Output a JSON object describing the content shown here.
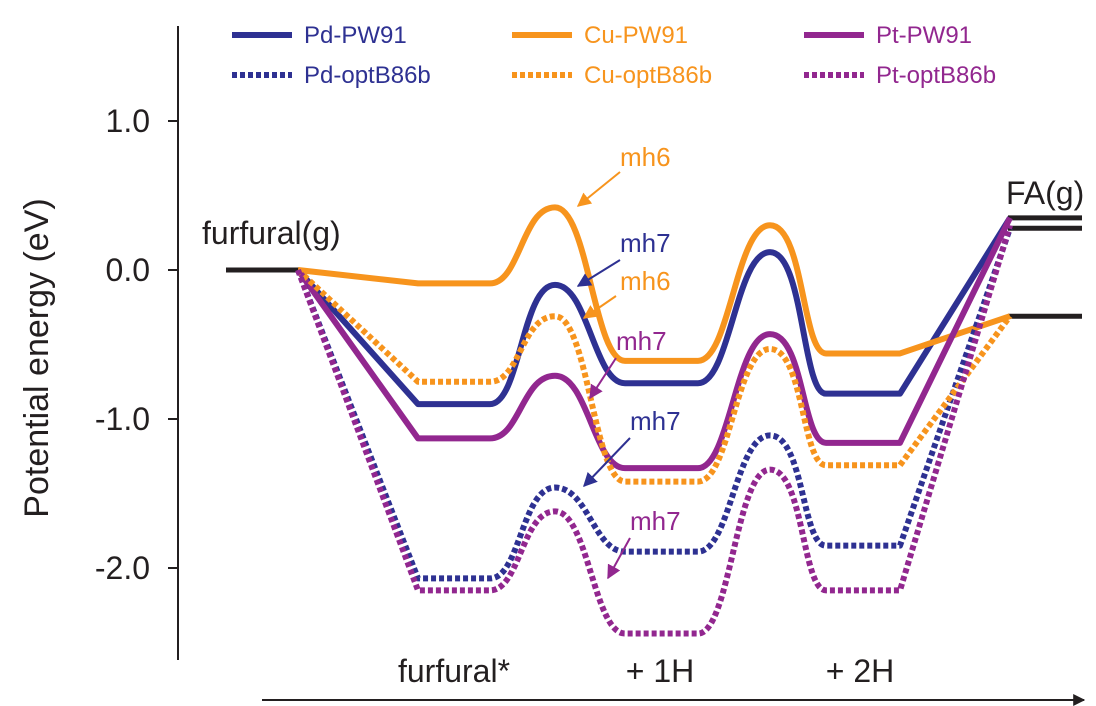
{
  "chart_data": {
    "type": "line",
    "title": "",
    "ylabel": "Potential energy (eV)",
    "xlabel": "",
    "ylim": [
      -2.6,
      1.6
    ],
    "yticks": [
      {
        "value": 1.0,
        "label": "1.0"
      },
      {
        "value": 0.0,
        "label": "0.0"
      },
      {
        "value": -1.0,
        "label": "-1.0"
      },
      {
        "value": -2.0,
        "label": "-2.0"
      }
    ],
    "stage_labels": [
      "furfural*",
      "+ 1H",
      "+ 2H"
    ],
    "reference_levels": [
      {
        "label": "furfural(g)",
        "value": 0.0
      },
      {
        "label": "FA(g)",
        "values": [
          0.35,
          0.28,
          -0.31
        ]
      }
    ],
    "path_points": [
      "furfural(g)",
      "furfural*",
      "furfural*",
      "TS1",
      "+ 1H",
      "+ 1H",
      "TS2",
      "+ 2H",
      "+ 2H",
      "FA(g)"
    ],
    "series": [
      {
        "name": "Pd-PW91",
        "style": "solid",
        "color": "#2E3192",
        "values": [
          0.0,
          -0.9,
          -0.9,
          -0.1,
          -0.76,
          -0.76,
          0.12,
          -0.83,
          -0.83,
          0.35
        ]
      },
      {
        "name": "Cu-PW91",
        "style": "solid",
        "color": "#F7941D",
        "values": [
          0.0,
          -0.09,
          -0.09,
          0.42,
          -0.61,
          -0.61,
          0.3,
          -0.56,
          -0.56,
          -0.31
        ]
      },
      {
        "name": "Pt-PW91",
        "style": "solid",
        "color": "#92278F",
        "values": [
          0.0,
          -1.13,
          -1.13,
          -0.71,
          -1.33,
          -1.33,
          -0.43,
          -1.16,
          -1.16,
          0.35
        ]
      },
      {
        "name": "Pd-optB86b",
        "style": "dashed",
        "color": "#2E3192",
        "values": [
          0.0,
          -2.07,
          -2.07,
          -1.46,
          -1.89,
          -1.89,
          -1.11,
          -1.85,
          -1.85,
          0.28
        ]
      },
      {
        "name": "Cu-optB86b",
        "style": "dashed",
        "color": "#F7941D",
        "values": [
          0.0,
          -0.75,
          -0.75,
          -0.31,
          -1.42,
          -1.42,
          -0.53,
          -1.31,
          -1.31,
          -0.31
        ]
      },
      {
        "name": "Pt-optB86b",
        "style": "dashed",
        "color": "#92278F",
        "values": [
          0.0,
          -2.15,
          -2.15,
          -1.62,
          -2.44,
          -2.44,
          -1.34,
          -2.15,
          -2.15,
          0.3
        ]
      }
    ],
    "annotations": [
      {
        "text": "mh6",
        "color": "#F7941D",
        "target_series": "Cu-PW91",
        "target_point": "TS1"
      },
      {
        "text": "mh7",
        "color": "#2E3192",
        "target_series": "Pd-PW91",
        "target_point": "TS1"
      },
      {
        "text": "mh6",
        "color": "#F7941D",
        "target_series": "Cu-optB86b",
        "target_point": "TS1"
      },
      {
        "text": "mh7",
        "color": "#92278F",
        "target_series": "Pt-PW91",
        "target_point": "TS1"
      },
      {
        "text": "mh7",
        "color": "#2E3192",
        "target_series": "Pd-optB86b",
        "target_point": "TS1"
      },
      {
        "text": "mh7",
        "color": "#92278F",
        "target_series": "Pt-optB86b",
        "target_point": "TS1"
      }
    ],
    "legend": {
      "placement": "top",
      "columns": 3
    },
    "grid": false
  }
}
